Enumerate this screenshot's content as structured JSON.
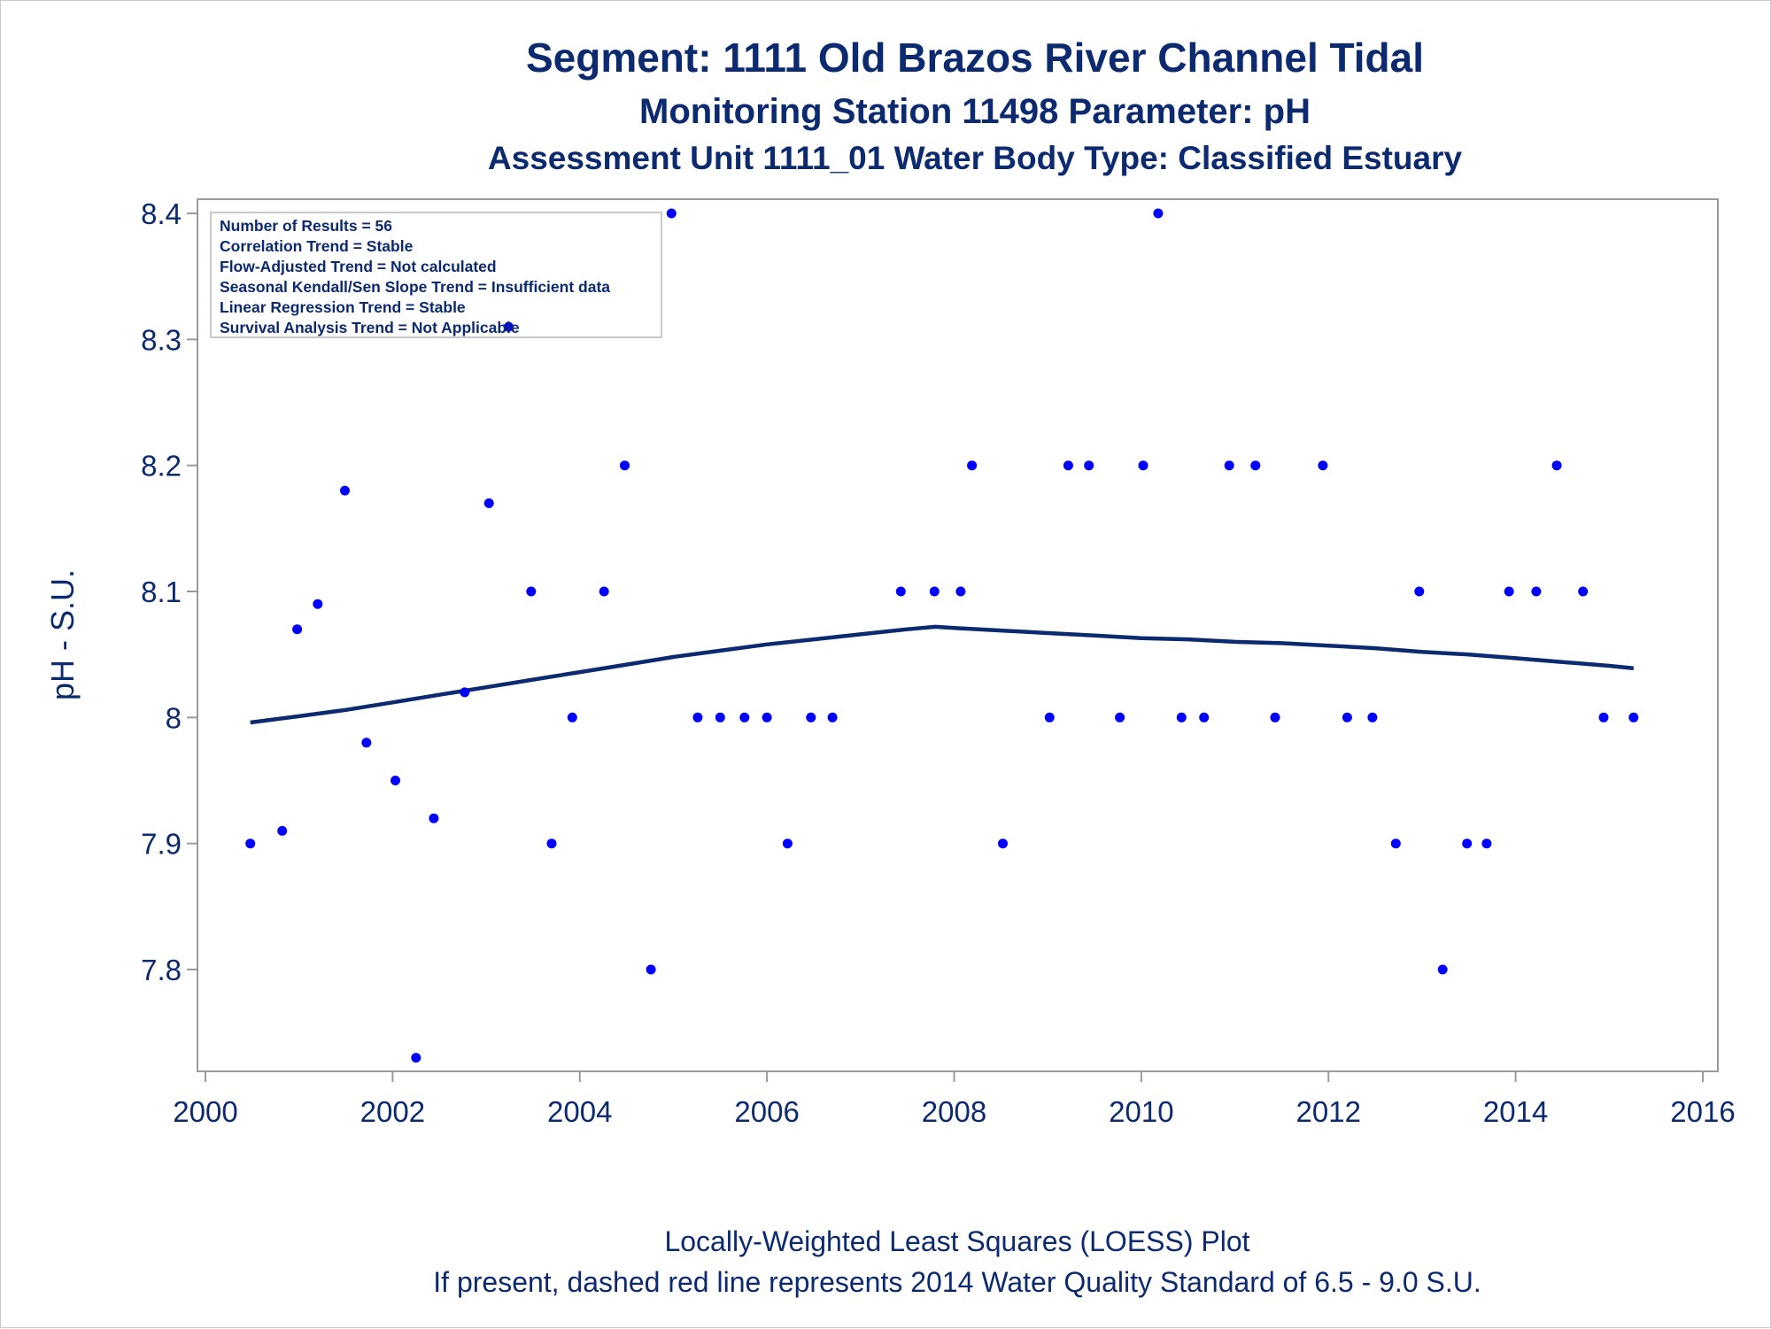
{
  "titles": {
    "line1": "Segment: 1111  Old Brazos River Channel Tidal",
    "line2": "Monitoring Station 11498 Parameter: pH",
    "line3": "Assessment Unit 1111_01   Water Body Type: Classified Estuary"
  },
  "footnotes": {
    "line1": "Locally-Weighted Least Squares (LOESS) Plot",
    "line2": "If present, dashed red line represents 2014 Water Quality Standard of 6.5 - 9.0 S.U."
  },
  "info_box": [
    "Number of Results = 56",
    "Correlation Trend = Stable",
    "Flow-Adjusted Trend = Not calculated",
    "Seasonal Kendall/Sen Slope Trend = Insufficient data",
    "Linear Regression Trend = Stable",
    "Survival Analysis Trend = Not Applicable"
  ],
  "colors": {
    "points": "#0000ff",
    "loess": "#0b2a6f",
    "text": "#0b2a6f",
    "frame": "#9a9a9a"
  },
  "chart_data": {
    "type": "scatter",
    "xlabel": "",
    "ylabel": "pH - S.U.",
    "xlim": [
      2000,
      2016
    ],
    "ylim": [
      7.73,
      8.41
    ],
    "x_ticks": [
      2000,
      2002,
      2004,
      2006,
      2008,
      2010,
      2012,
      2014,
      2016
    ],
    "y_ticks": [
      7.8,
      7.9,
      8,
      8.1,
      8.2,
      8.3,
      8.4
    ],
    "y_tick_labels": [
      "7.8",
      "7.9",
      "8",
      "8.1",
      "8.2",
      "8.3",
      "8.4"
    ],
    "grid": false,
    "series": [
      {
        "kind": "points",
        "points": [
          [
            2000.48,
            7.9
          ],
          [
            2000.82,
            7.91
          ],
          [
            2000.98,
            8.07
          ],
          [
            2001.2,
            8.09
          ],
          [
            2001.49,
            8.18
          ],
          [
            2001.72,
            7.98
          ],
          [
            2002.03,
            7.95
          ],
          [
            2002.25,
            7.73
          ],
          [
            2002.44,
            7.92
          ],
          [
            2002.77,
            8.02
          ],
          [
            2003.03,
            8.17
          ],
          [
            2003.24,
            8.31
          ],
          [
            2003.48,
            8.1
          ],
          [
            2003.7,
            7.9
          ],
          [
            2003.92,
            8.0
          ],
          [
            2004.26,
            8.1
          ],
          [
            2004.48,
            8.2
          ],
          [
            2004.76,
            7.8
          ],
          [
            2004.98,
            8.4
          ],
          [
            2005.26,
            8.0
          ],
          [
            2005.5,
            8.0
          ],
          [
            2005.76,
            8.0
          ],
          [
            2006.0,
            8.0
          ],
          [
            2006.22,
            7.9
          ],
          [
            2006.47,
            8.0
          ],
          [
            2006.7,
            8.0
          ],
          [
            2007.43,
            8.1
          ],
          [
            2007.79,
            8.1
          ],
          [
            2008.07,
            8.1
          ],
          [
            2008.19,
            8.2
          ],
          [
            2008.52,
            7.9
          ],
          [
            2009.02,
            8.0
          ],
          [
            2009.22,
            8.2
          ],
          [
            2009.44,
            8.2
          ],
          [
            2009.77,
            8.0
          ],
          [
            2010.02,
            8.2
          ],
          [
            2010.18,
            8.4
          ],
          [
            2010.43,
            8.0
          ],
          [
            2010.67,
            8.0
          ],
          [
            2010.94,
            8.2
          ],
          [
            2011.22,
            8.2
          ],
          [
            2011.43,
            8.0
          ],
          [
            2011.94,
            8.2
          ],
          [
            2012.2,
            8.0
          ],
          [
            2012.47,
            8.0
          ],
          [
            2012.72,
            7.9
          ],
          [
            2012.97,
            8.1
          ],
          [
            2013.22,
            7.8
          ],
          [
            2013.48,
            7.9
          ],
          [
            2013.69,
            7.9
          ],
          [
            2013.93,
            8.1
          ],
          [
            2014.22,
            8.1
          ],
          [
            2014.44,
            8.2
          ],
          [
            2014.72,
            8.1
          ],
          [
            2014.94,
            8.0
          ],
          [
            2015.26,
            8.0
          ]
        ]
      },
      {
        "kind": "loess",
        "points": [
          [
            2000.48,
            7.996
          ],
          [
            2001.0,
            8.001
          ],
          [
            2001.5,
            8.006
          ],
          [
            2002.0,
            8.012
          ],
          [
            2002.5,
            8.018
          ],
          [
            2003.0,
            8.024
          ],
          [
            2003.5,
            8.03
          ],
          [
            2004.0,
            8.036
          ],
          [
            2004.5,
            8.042
          ],
          [
            2005.0,
            8.048
          ],
          [
            2005.5,
            8.053
          ],
          [
            2006.0,
            8.058
          ],
          [
            2006.5,
            8.062
          ],
          [
            2007.0,
            8.066
          ],
          [
            2007.5,
            8.07
          ],
          [
            2007.8,
            8.072
          ],
          [
            2008.0,
            8.071
          ],
          [
            2008.5,
            8.069
          ],
          [
            2009.0,
            8.067
          ],
          [
            2009.5,
            8.065
          ],
          [
            2010.0,
            8.063
          ],
          [
            2010.5,
            8.062
          ],
          [
            2011.0,
            8.06
          ],
          [
            2011.5,
            8.059
          ],
          [
            2012.0,
            8.057
          ],
          [
            2012.5,
            8.055
          ],
          [
            2013.0,
            8.052
          ],
          [
            2013.5,
            8.05
          ],
          [
            2014.0,
            8.047
          ],
          [
            2014.5,
            8.044
          ],
          [
            2015.0,
            8.041
          ],
          [
            2015.26,
            8.039
          ]
        ]
      }
    ]
  }
}
